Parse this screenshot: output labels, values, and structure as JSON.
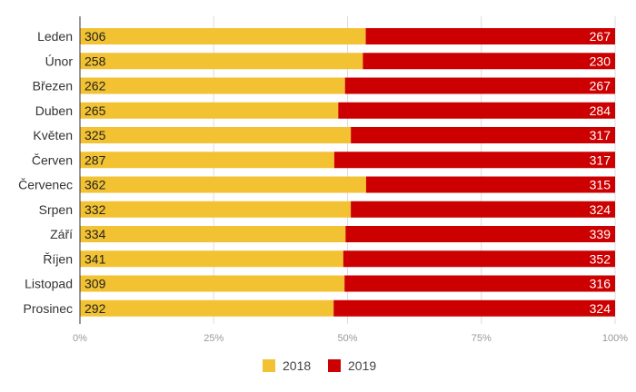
{
  "chart_data": {
    "type": "bar",
    "orientation": "horizontal",
    "stacking": "percent",
    "categories": [
      "Leden",
      "Únor",
      "Březen",
      "Duben",
      "Květen",
      "Červen",
      "Červenec",
      "Srpen",
      "Září",
      "Říjen",
      "Listopad",
      "Prosinec"
    ],
    "series": [
      {
        "name": "2018",
        "color": "#f2c232",
        "values": [
          306,
          258,
          262,
          265,
          325,
          287,
          362,
          332,
          334,
          341,
          309,
          292
        ]
      },
      {
        "name": "2019",
        "color": "#cc0000",
        "values": [
          267,
          230,
          267,
          284,
          317,
          317,
          315,
          324,
          339,
          352,
          316,
          324
        ]
      }
    ],
    "x_ticks": [
      "0%",
      "25%",
      "50%",
      "75%",
      "100%"
    ],
    "xlim": [
      0,
      100
    ],
    "grid": true,
    "legend_position": "bottom"
  }
}
